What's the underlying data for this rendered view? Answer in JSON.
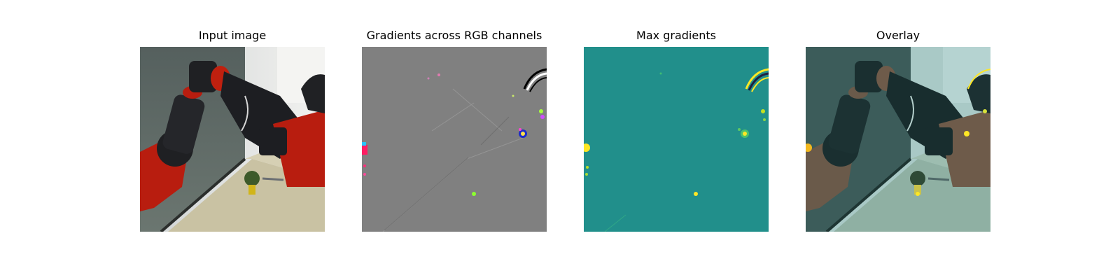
{
  "panels": [
    {
      "id": "input",
      "title": "Input image"
    },
    {
      "id": "gradrgb",
      "title": "Gradients across RGB channels"
    },
    {
      "id": "maxgrad",
      "title": "Max gradients"
    },
    {
      "id": "overlay",
      "title": "Overlay"
    }
  ],
  "colors": {
    "gradient_gray": "#808080",
    "viridis_mid": "#218f8b",
    "viridis_high": "#fde725",
    "robot_red": "#b81d0f",
    "robot_black": "#1f2023",
    "floor": "#c7c1a4"
  }
}
